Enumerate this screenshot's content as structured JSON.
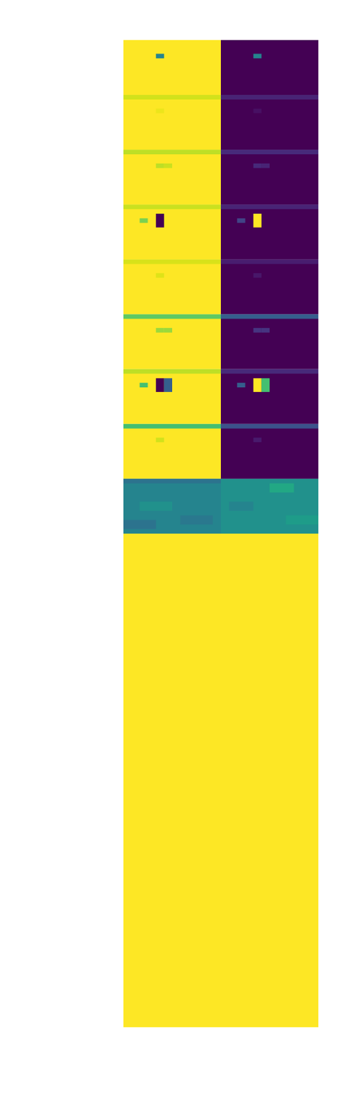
{
  "chart_data": {
    "type": "heatmap",
    "color": "viridis",
    "value_range": [
      0,
      1
    ],
    "tick_labels": false,
    "panels": [
      {
        "row": 0,
        "col": 0,
        "fill": 1,
        "cells": [
          [
            4,
            5,
            3,
            4,
            0.45
          ]
        ]
      },
      {
        "row": 0,
        "col": 1,
        "fill": 0,
        "cells": [
          [
            4,
            5,
            3,
            4,
            0.45
          ]
        ]
      },
      {
        "row": 1,
        "col": 0,
        "fill": 1,
        "cells": [
          [
            0,
            12,
            0,
            1,
            0.93
          ],
          [
            4,
            5,
            3,
            4,
            0.97
          ]
        ]
      },
      {
        "row": 1,
        "col": 1,
        "fill": 0,
        "cells": [
          [
            0,
            12,
            0,
            1,
            0.1
          ],
          [
            4,
            5,
            3,
            4,
            0.04
          ]
        ]
      },
      {
        "row": 2,
        "col": 0,
        "fill": 1,
        "cells": [
          [
            0,
            12,
            0,
            1,
            0.9
          ],
          [
            4,
            5,
            3,
            4,
            0.9
          ],
          [
            5,
            6,
            3,
            4,
            0.92
          ]
        ]
      },
      {
        "row": 2,
        "col": 1,
        "fill": 0,
        "cells": [
          [
            0,
            12,
            0,
            1,
            0.12
          ],
          [
            4,
            5,
            3,
            4,
            0.12
          ],
          [
            5,
            6,
            3,
            4,
            0.1
          ]
        ]
      },
      {
        "row": 3,
        "col": 0,
        "fill": 1,
        "cells": [
          [
            0,
            12,
            0,
            1,
            0.92
          ],
          [
            2,
            3,
            3,
            4,
            0.8
          ],
          [
            4,
            5,
            2,
            5,
            0
          ]
        ]
      },
      {
        "row": 3,
        "col": 1,
        "fill": 0,
        "cells": [
          [
            0,
            12,
            0,
            1,
            0.1
          ],
          [
            2,
            3,
            3,
            4,
            0.2
          ],
          [
            4,
            5,
            2,
            5,
            1
          ]
        ]
      },
      {
        "row": 4,
        "col": 0,
        "fill": 1,
        "cells": [
          [
            0,
            12,
            0,
            1,
            0.94
          ],
          [
            4,
            5,
            3,
            4,
            0.95
          ]
        ]
      },
      {
        "row": 4,
        "col": 1,
        "fill": 0,
        "cells": [
          [
            0,
            12,
            0,
            1,
            0.08
          ],
          [
            4,
            5,
            3,
            4,
            0.06
          ]
        ]
      },
      {
        "row": 5,
        "col": 0,
        "fill": 1,
        "cells": [
          [
            0,
            12,
            0,
            1,
            0.75
          ],
          [
            4,
            5,
            3,
            4,
            0.85
          ],
          [
            5,
            6,
            3,
            4,
            0.85
          ]
        ]
      },
      {
        "row": 5,
        "col": 1,
        "fill": 0,
        "cells": [
          [
            0,
            12,
            0,
            1,
            0.3
          ],
          [
            4,
            5,
            3,
            4,
            0.15
          ],
          [
            5,
            6,
            3,
            4,
            0.15
          ]
        ]
      },
      {
        "row": 6,
        "col": 0,
        "fill": 1,
        "cells": [
          [
            0,
            12,
            0,
            1,
            0.9
          ],
          [
            2,
            3,
            3,
            4,
            0.7
          ],
          [
            4,
            5,
            2,
            5,
            0
          ],
          [
            5,
            6,
            2,
            5,
            0.3
          ]
        ]
      },
      {
        "row": 6,
        "col": 1,
        "fill": 0,
        "cells": [
          [
            0,
            12,
            0,
            1,
            0.12
          ],
          [
            2,
            3,
            3,
            4,
            0.3
          ],
          [
            4,
            5,
            2,
            5,
            1
          ],
          [
            5,
            6,
            2,
            5,
            0.7
          ]
        ]
      },
      {
        "row": 7,
        "col": 0,
        "fill": 1,
        "cells": [
          [
            0,
            12,
            0,
            1,
            0.7
          ],
          [
            4,
            5,
            3,
            4,
            0.93
          ]
        ]
      },
      {
        "row": 7,
        "col": 1,
        "fill": 0,
        "cells": [
          [
            0,
            12,
            0,
            1,
            0.25
          ],
          [
            4,
            5,
            3,
            4,
            0.07
          ]
        ]
      },
      {
        "row": 8,
        "col": 0,
        "fill": 0.45,
        "cells": [
          [
            0,
            12,
            0,
            1,
            0.38
          ],
          [
            2,
            6,
            5,
            7,
            0.5
          ],
          [
            7,
            11,
            8,
            10,
            0.4
          ],
          [
            0,
            4,
            9,
            11,
            0.38
          ]
        ]
      },
      {
        "row": 8,
        "col": 1,
        "fill": 0.5,
        "cells": [
          [
            6,
            9,
            1,
            3,
            0.6
          ],
          [
            1,
            4,
            5,
            7,
            0.45
          ],
          [
            8,
            12,
            8,
            10,
            0.55
          ]
        ]
      }
    ],
    "lower_block": [
      1,
      1
    ]
  }
}
